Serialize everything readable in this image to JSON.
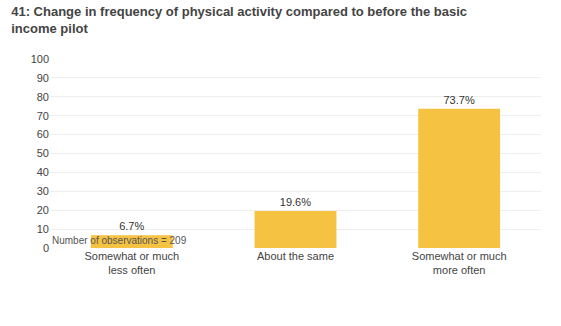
{
  "chart_data": {
    "type": "bar",
    "title": "41: Change in frequency of physical activity compared to before the basic\nincome pilot",
    "categories": [
      "Somewhat or much\nless often",
      "About the same",
      "Somewhat or much\nmore often"
    ],
    "values": [
      6.7,
      19.6,
      73.7
    ],
    "value_labels": [
      "6.7%",
      "19.6%",
      "73.7%"
    ],
    "data_labels": true,
    "color": "#F5C242",
    "ylim": [
      0,
      100
    ],
    "yticks": [
      0,
      10,
      20,
      30,
      40,
      50,
      60,
      70,
      80,
      90,
      100
    ],
    "grid": true,
    "annotations": [
      "Number of observations = 209"
    ]
  }
}
